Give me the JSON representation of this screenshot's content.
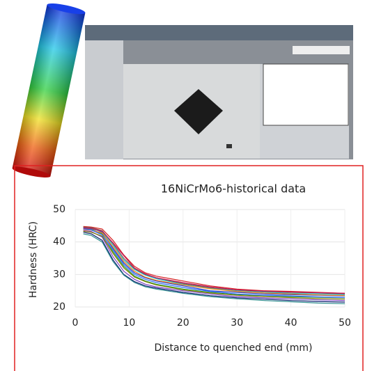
{
  "chart_data": {
    "type": "line",
    "title": "16NiCrMo6-historical data",
    "x_label": "Distance to quenched end (mm)",
    "y_label": "Hardness (HRC)",
    "x": [
      1.5,
      3,
      5,
      7,
      9,
      11,
      13,
      15,
      20,
      25,
      30,
      35,
      40,
      45,
      50
    ],
    "series": [
      {
        "color": "#1f3fbf",
        "values": [
          44.5,
          44.3,
          43.0,
          38.0,
          33.5,
          30.5,
          29.0,
          28.0,
          26.5,
          25.0,
          24.5,
          24.0,
          23.8,
          23.6,
          23.4
        ]
      },
      {
        "color": "#d62020",
        "values": [
          44.8,
          44.6,
          44.0,
          40.5,
          36.0,
          32.5,
          30.5,
          29.5,
          28.0,
          26.5,
          25.5,
          25.0,
          24.8,
          24.5,
          24.2
        ]
      },
      {
        "color": "#2ca02c",
        "values": [
          44.0,
          43.8,
          42.5,
          37.0,
          32.5,
          29.5,
          28.0,
          27.0,
          25.5,
          24.5,
          23.8,
          23.5,
          23.2,
          23.0,
          22.8
        ]
      },
      {
        "color": "#7b3fbf",
        "values": [
          43.5,
          43.2,
          41.5,
          35.5,
          31.0,
          28.5,
          27.0,
          26.2,
          25.0,
          24.0,
          23.2,
          22.8,
          22.5,
          22.2,
          22.0
        ]
      },
      {
        "color": "#17becf",
        "values": [
          44.2,
          44.0,
          43.2,
          39.0,
          34.5,
          31.5,
          29.8,
          28.7,
          27.0,
          25.8,
          25.0,
          24.6,
          24.2,
          24.0,
          23.8
        ]
      },
      {
        "color": "#ff7f0e",
        "values": [
          43.8,
          43.6,
          42.8,
          38.5,
          34.0,
          31.0,
          29.2,
          28.2,
          26.8,
          25.6,
          24.8,
          24.3,
          24.0,
          23.7,
          23.5
        ]
      },
      {
        "color": "#0b1f6f",
        "values": [
          43.0,
          42.5,
          40.5,
          34.5,
          30.0,
          27.8,
          26.5,
          25.8,
          24.5,
          23.5,
          22.8,
          22.4,
          22.0,
          21.7,
          21.5
        ]
      },
      {
        "color": "#8c564b",
        "values": [
          44.6,
          44.4,
          43.5,
          39.5,
          35.0,
          31.8,
          30.0,
          29.0,
          27.2,
          26.0,
          25.2,
          24.8,
          24.5,
          24.3,
          24.0
        ]
      },
      {
        "color": "#2f8f8f",
        "values": [
          42.5,
          42.0,
          40.0,
          34.0,
          29.8,
          27.5,
          26.2,
          25.5,
          24.2,
          23.2,
          22.5,
          22.0,
          21.6,
          21.2,
          21.0
        ]
      },
      {
        "color": "#c2185b",
        "values": [
          44.3,
          44.1,
          43.3,
          39.8,
          35.8,
          32.0,
          30.2,
          29.0,
          27.5,
          26.2,
          25.3,
          24.9,
          24.6,
          24.4,
          24.2
        ]
      },
      {
        "color": "#808000",
        "values": [
          43.3,
          43.0,
          41.8,
          36.5,
          32.0,
          29.2,
          27.8,
          26.8,
          25.3,
          24.3,
          23.6,
          23.2,
          22.9,
          22.6,
          22.4
        ]
      },
      {
        "color": "#3366ff",
        "values": [
          44.0,
          43.7,
          42.2,
          37.5,
          33.0,
          30.0,
          28.5,
          27.5,
          26.0,
          24.8,
          24.0,
          23.6,
          23.4,
          23.1,
          22.9
        ]
      }
    ],
    "xlim": [
      0,
      50
    ],
    "xticks": [
      0,
      10,
      20,
      30,
      40,
      50
    ],
    "ylim": [
      20,
      50
    ],
    "yticks": [
      20,
      30,
      40,
      50
    ],
    "grid": true
  }
}
